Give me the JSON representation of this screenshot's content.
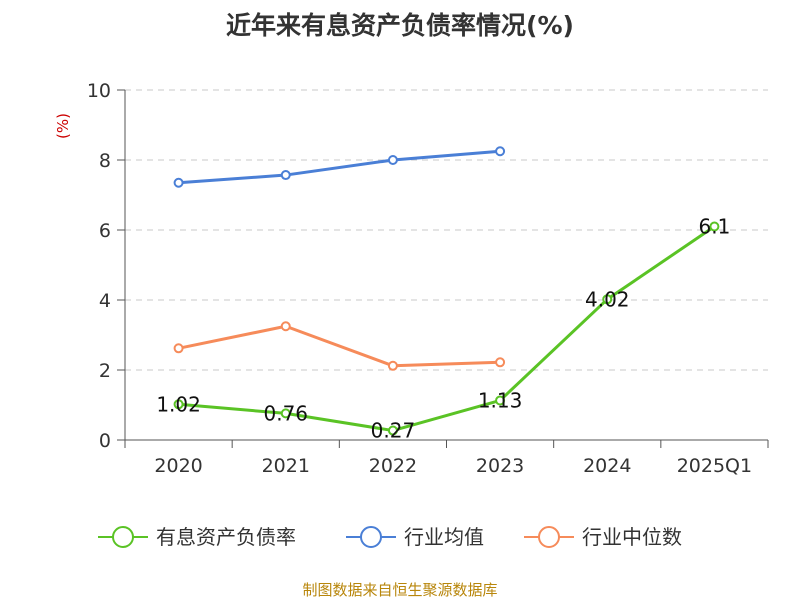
{
  "chart_data": {
    "type": "line",
    "title": "近年来有息资产负债率情况(%)",
    "ylabel": "(%)",
    "xlabel": "",
    "ylim": [
      0,
      10
    ],
    "yticks": [
      "0",
      "2",
      "4",
      "6",
      "8",
      "10"
    ],
    "categories": [
      "2020",
      "2021",
      "2022",
      "2023",
      "2024",
      "2025Q1"
    ],
    "grid": true,
    "legend_position": "bottom",
    "series": [
      {
        "name": "有息资产负债率",
        "color": "#5ac325",
        "values": [
          1.02,
          0.76,
          0.27,
          1.13,
          4.02,
          6.1
        ],
        "labels": [
          "1.02",
          "0.76",
          "0.27",
          "1.13",
          "4.02",
          "6.1"
        ]
      },
      {
        "name": "行业均值",
        "color": "#4a7fd6",
        "values": [
          7.35,
          7.57,
          8.0,
          8.25,
          null,
          null
        ]
      },
      {
        "name": "行业中位数",
        "color": "#f68b5a",
        "values": [
          2.62,
          3.25,
          2.12,
          2.22,
          null,
          null
        ]
      }
    ],
    "source": "制图数据来自恒生聚源数据库"
  }
}
